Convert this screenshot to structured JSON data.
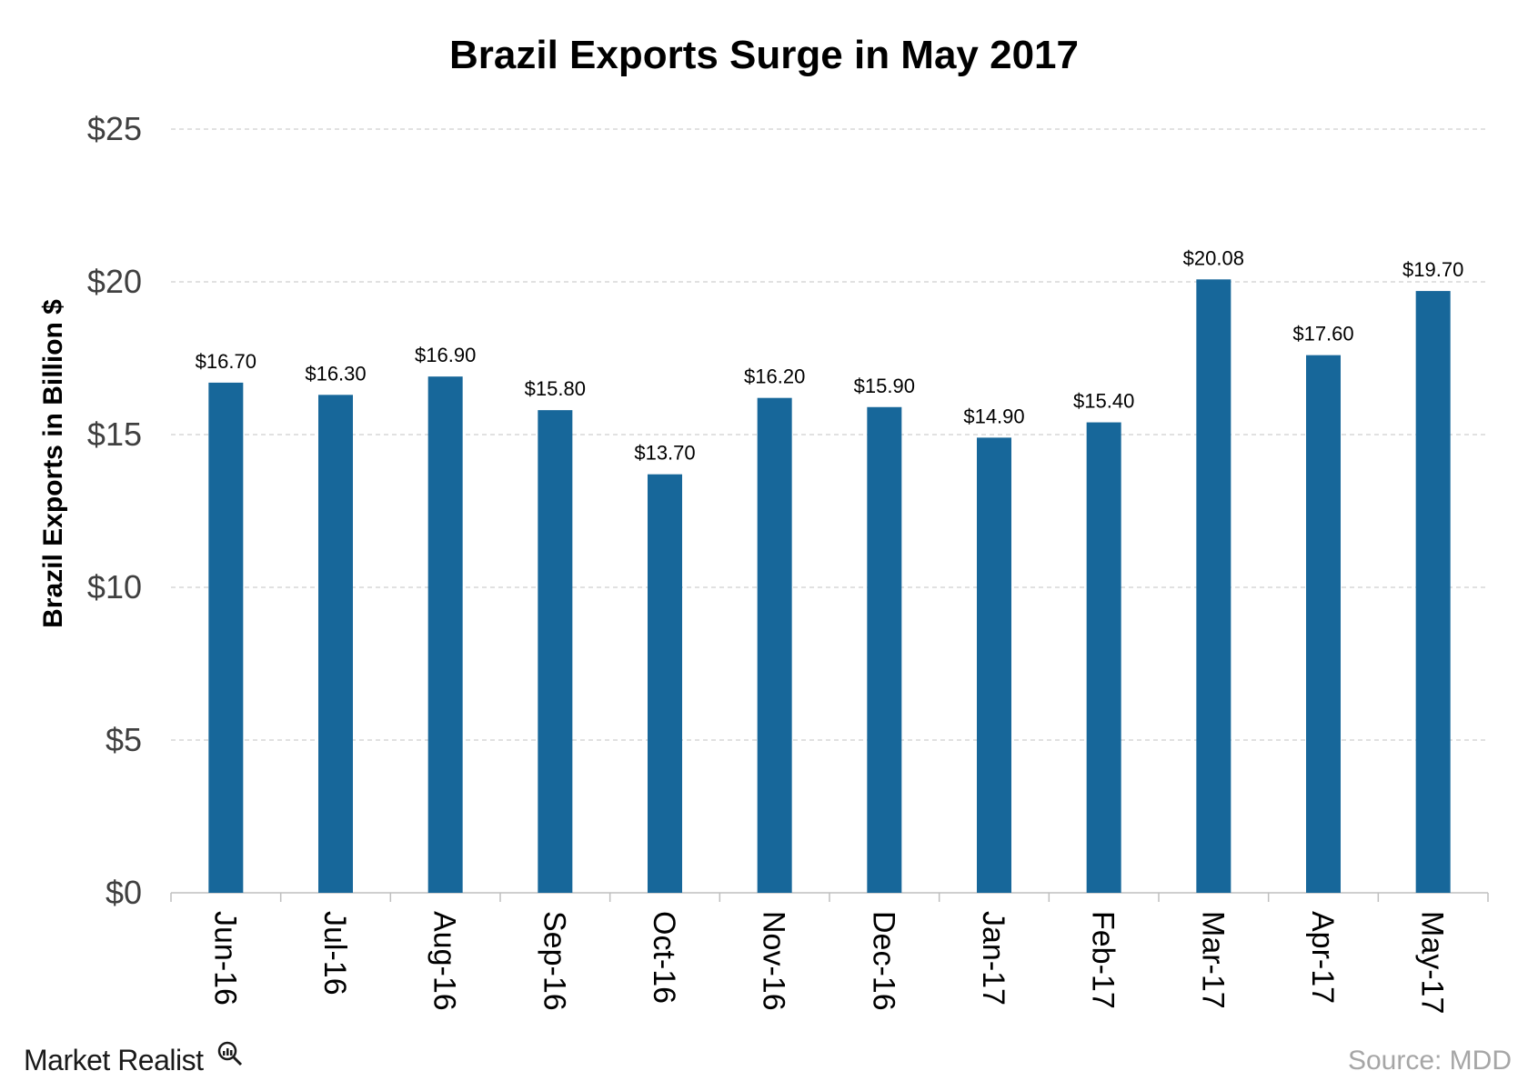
{
  "chart_data": {
    "type": "bar",
    "title": "Brazil Exports Surge in May 2017",
    "ylabel": "Brazil Exports in Billion $",
    "xlabel": "",
    "categories": [
      "Jun-16",
      "Jul-16",
      "Aug-16",
      "Sep-16",
      "Oct-16",
      "Nov-16",
      "Dec-16",
      "Jan-17",
      "Feb-17",
      "Mar-17",
      "Apr-17",
      "May-17"
    ],
    "values": [
      16.7,
      16.3,
      16.9,
      15.8,
      13.7,
      16.2,
      15.9,
      14.9,
      15.4,
      20.08,
      17.6,
      19.7
    ],
    "data_labels": [
      "$16.70",
      "$16.30",
      "$16.90",
      "$15.80",
      "$13.70",
      "$16.20",
      "$15.90",
      "$14.90",
      "$15.40",
      "$20.08",
      "$17.60",
      "$19.70"
    ],
    "ylim": [
      0,
      25
    ],
    "yticks": [
      0,
      5,
      10,
      15,
      20,
      25
    ],
    "ytick_labels": [
      "$0",
      "$5",
      "$10",
      "$15",
      "$20",
      "$25"
    ],
    "grid": true,
    "bar_color": "#17679A"
  },
  "footer": {
    "brand": "Market Realist",
    "source": "Source: MDD"
  }
}
